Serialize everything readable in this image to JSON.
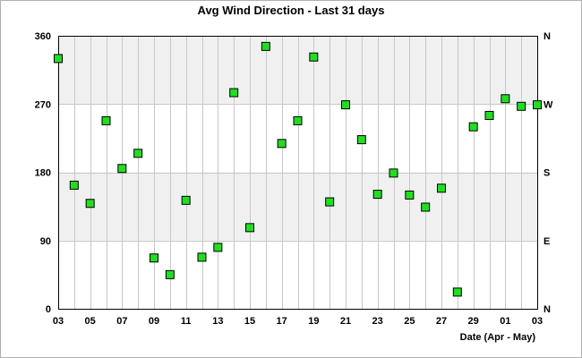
{
  "chart_data": {
    "type": "scatter",
    "title": "Avg Wind Direction - Last 31 days",
    "xlabel": "Date (Apr - May)",
    "ylabel": "",
    "ylim": [
      0,
      360
    ],
    "y_ticks": [
      "0",
      "90",
      "180",
      "270",
      "360"
    ],
    "right_ticks": [
      "N",
      "E",
      "S",
      "W",
      "N"
    ],
    "x_ticks": [
      "03",
      "05",
      "07",
      "09",
      "11",
      "13",
      "15",
      "17",
      "19",
      "21",
      "23",
      "25",
      "27",
      "29",
      "01",
      "03"
    ],
    "grid": true,
    "marker": "square",
    "marker_color": "#22dd22",
    "band_color": "#f0f0f0",
    "values": [
      330,
      163,
      139,
      248,
      185,
      205,
      67,
      45,
      143,
      68,
      81,
      285,
      107,
      346,
      218,
      248,
      332,
      141,
      269,
      223,
      151,
      179,
      150,
      134,
      159,
      22,
      240,
      255,
      277,
      267,
      269
    ]
  }
}
